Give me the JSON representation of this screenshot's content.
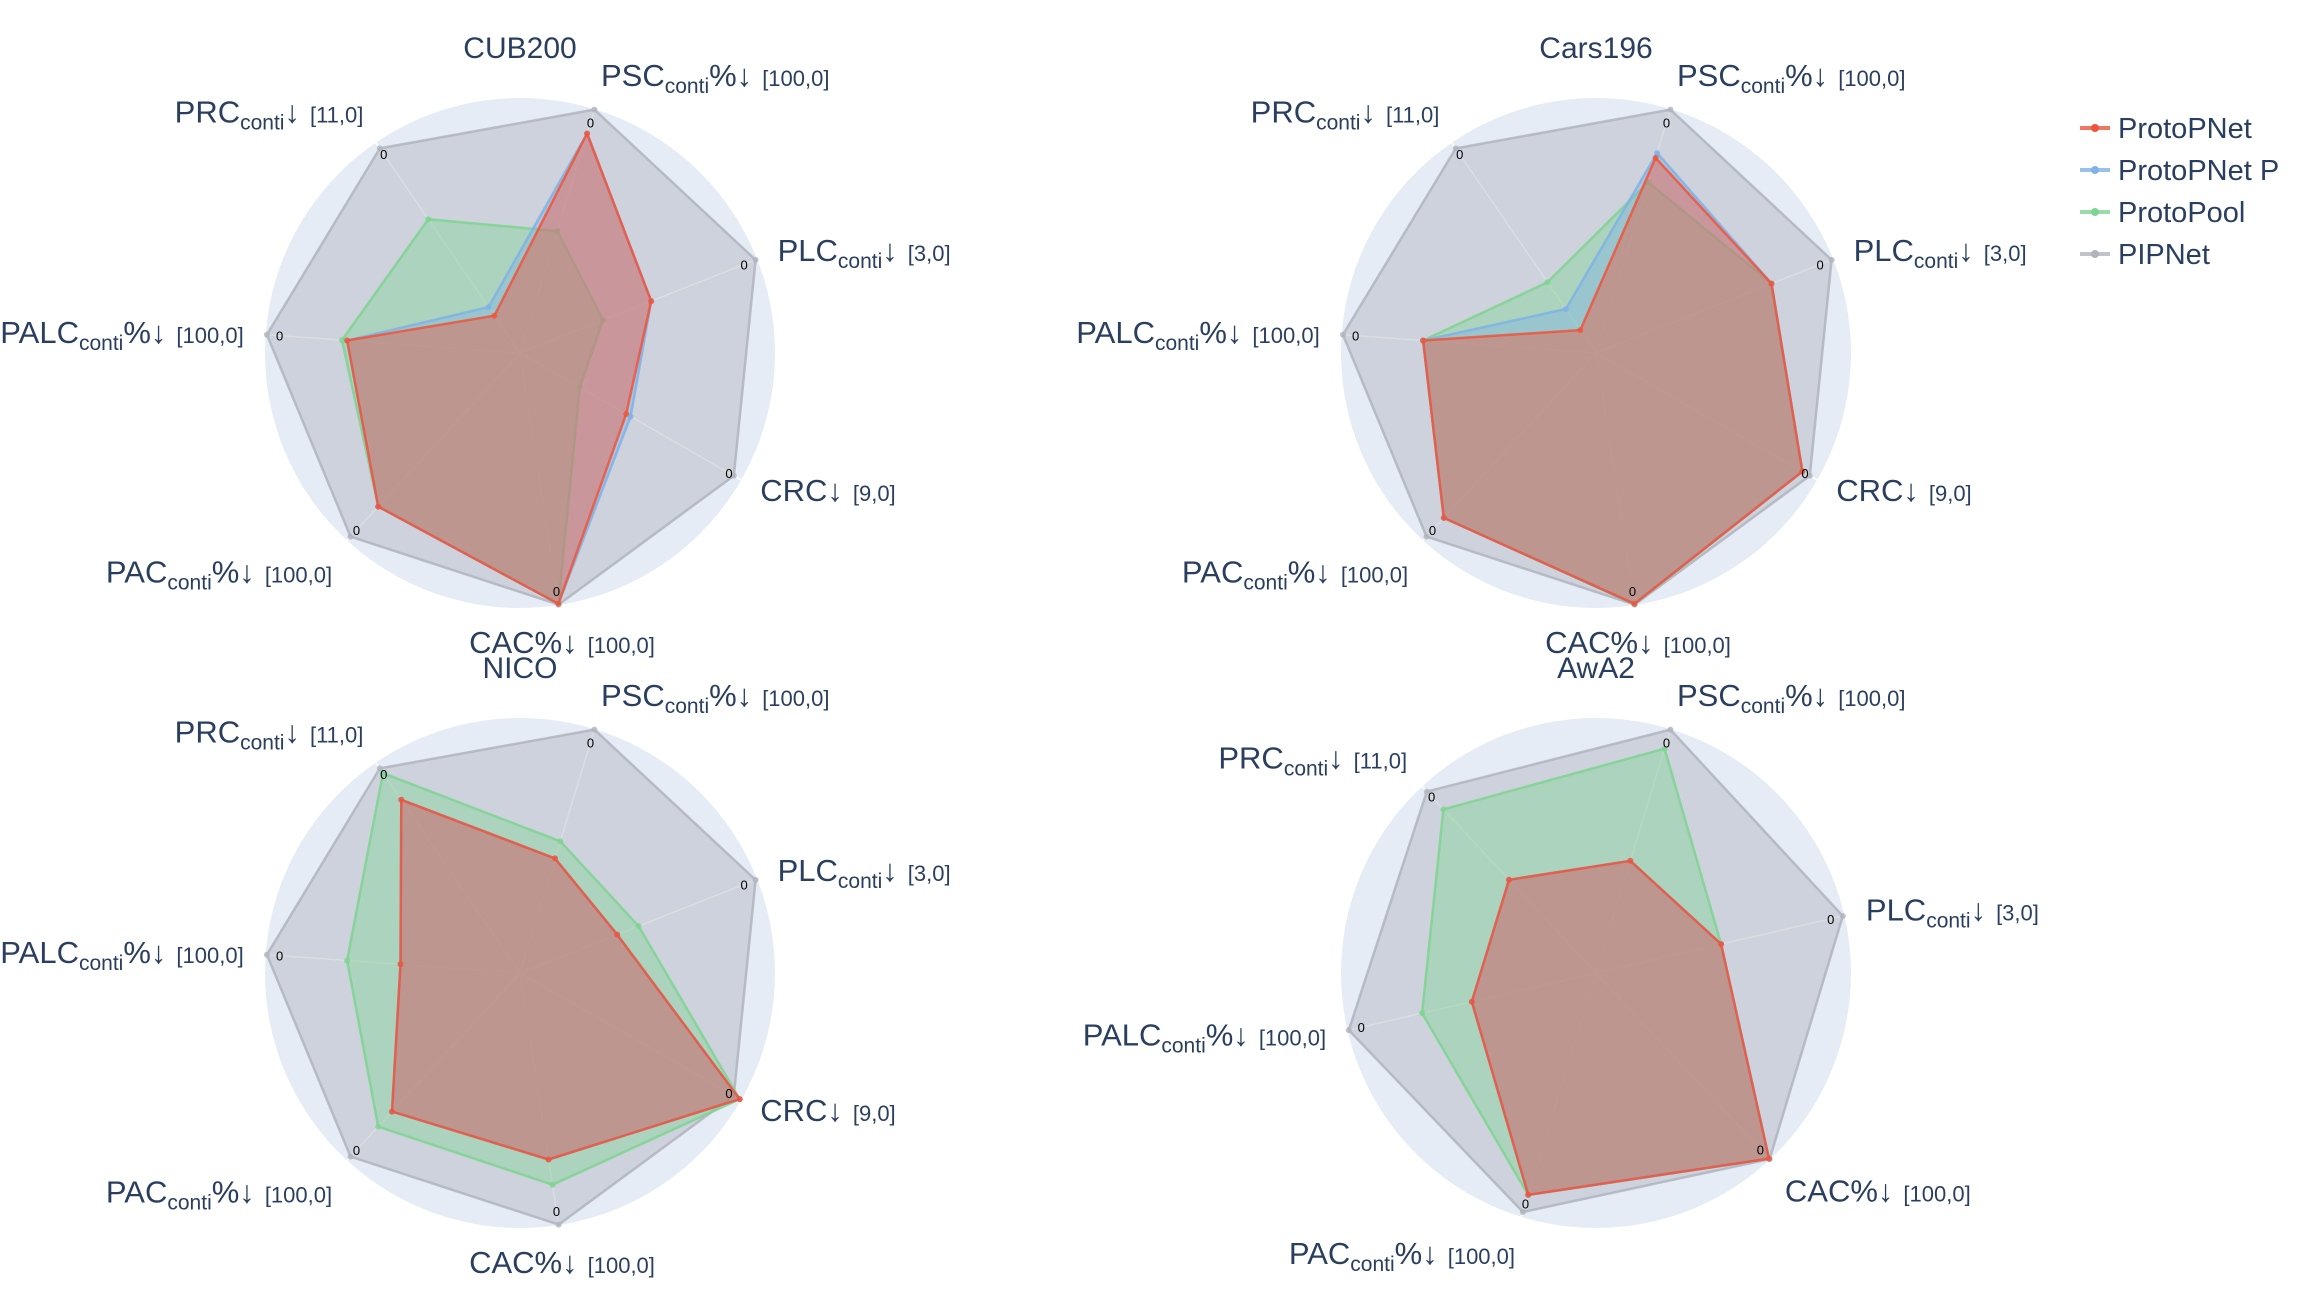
{
  "chart_data": {
    "type": "radar",
    "legend": {
      "placement": "top-right",
      "series": [
        {
          "name": "ProtoPNet",
          "color": "#ef553b"
        },
        {
          "name": "ProtoPNet P",
          "color": "#7fb2e5"
        },
        {
          "name": "ProtoPool",
          "color": "#7ed491"
        },
        {
          "name": "PIPNet",
          "color": "#b0b4bd"
        }
      ]
    },
    "panels": [
      {
        "title": "CUB200",
        "axes": [
          {
            "main": "PSC",
            "sub": "conti",
            "suffix": "%↓",
            "range": "[100,0]",
            "max": 100
          },
          {
            "main": "PLC",
            "sub": "conti",
            "suffix": "↓",
            "range": "[3,0]",
            "max": 3
          },
          {
            "main": "CRC",
            "sub": "",
            "suffix": "↓",
            "range": "[9,0]",
            "max": 9
          },
          {
            "main": "CAC",
            "sub": "",
            "suffix": "%↓",
            "range": "[100,0]",
            "max": 100
          },
          {
            "main": "PAC",
            "sub": "conti",
            "suffix": "%↓",
            "range": "[100,0]",
            "max": 100
          },
          {
            "main": "PALC",
            "sub": "conti",
            "suffix": "%↓",
            "range": "[100,0]",
            "max": 100
          },
          {
            "main": "PRC",
            "sub": "conti",
            "suffix": "↓",
            "range": "[11,0]",
            "max": 11
          }
        ],
        "tick_label": "0",
        "series": [
          {
            "name": "ProtoPNet",
            "values": [
              10,
              1.34,
              4.68,
              0.5,
              18,
              32,
              9.05
            ]
          },
          {
            "name": "ProtoPNet P",
            "values": [
              10,
              1.34,
              4.5,
              0.5,
              18,
              32,
              8.6
            ]
          },
          {
            "name": "ProtoPool",
            "values": [
              50,
              1.95,
              6.57,
              0.5,
              18,
              30,
              4.0
            ]
          },
          {
            "name": "PIPNet",
            "values": [
              0.2,
              0.02,
              0.3,
              0.2,
              2,
              0.5,
              0.3
            ]
          }
        ]
      },
      {
        "title": "Cars196",
        "axes": [
          {
            "main": "PSC",
            "sub": "conti",
            "suffix": "%↓",
            "range": "[100,0]",
            "max": 100
          },
          {
            "main": "PLC",
            "sub": "conti",
            "suffix": "↓",
            "range": "[3,0]",
            "max": 3
          },
          {
            "main": "CRC",
            "sub": "",
            "suffix": "↓",
            "range": "[9,0]",
            "max": 9
          },
          {
            "main": "CAC",
            "sub": "",
            "suffix": "%↓",
            "range": "[100,0]",
            "max": 100
          },
          {
            "main": "PAC",
            "sub": "conti",
            "suffix": "%↓",
            "range": "[100,0]",
            "max": 100
          },
          {
            "main": "PALC",
            "sub": "conti",
            "suffix": "%↓",
            "range": "[100,0]",
            "max": 100
          },
          {
            "main": "PRC",
            "sub": "conti",
            "suffix": "↓",
            "range": "[11,0]",
            "max": 11
          }
        ],
        "tick_label": "0",
        "series": [
          {
            "name": "ProtoPNet",
            "values": [
              20,
              0.78,
              0.6,
              0.5,
              12,
              32,
              9.8
            ]
          },
          {
            "name": "ProtoPNet P",
            "values": [
              18,
              0.78,
              0.6,
              0.5,
              12,
              32,
              8.7
            ]
          },
          {
            "name": "ProtoPool",
            "values": [
              30,
              0.78,
              0.6,
              0.3,
              12,
              32,
              7.3
            ]
          },
          {
            "name": "PIPNet",
            "values": [
              0.2,
              0.02,
              0.3,
              0.2,
              2,
              0.5,
              0.3
            ]
          }
        ]
      },
      {
        "title": "NICO",
        "axes": [
          {
            "main": "PSC",
            "sub": "conti",
            "suffix": "%↓",
            "range": "[100,0]",
            "max": 100
          },
          {
            "main": "PLC",
            "sub": "conti",
            "suffix": "↓",
            "range": "[3,0]",
            "max": 3
          },
          {
            "main": "CRC",
            "sub": "",
            "suffix": "↓",
            "range": "[9,0]",
            "max": 9
          },
          {
            "main": "CAC",
            "sub": "",
            "suffix": "%↓",
            "range": "[100,0]",
            "max": 100
          },
          {
            "main": "PAC",
            "sub": "conti",
            "suffix": "%↓",
            "range": "[100,0]",
            "max": 100
          },
          {
            "main": "PALC",
            "sub": "conti",
            "suffix": "%↓",
            "range": "[100,0]",
            "max": 100
          },
          {
            "main": "PRC",
            "sub": "conti",
            "suffix": "↓",
            "range": "[11,0]",
            "max": 11
          }
        ],
        "tick_label": "0",
        "series": [
          {
            "name": "ProtoPNet",
            "values": [
              53,
              1.77,
              0.06,
              26,
              26,
              53,
              1.94
            ]
          },
          {
            "name": "ProtoPNet P",
            "values": [
              53,
              1.77,
              0.06,
              26,
              26,
              53,
              1.94
            ]
          },
          {
            "name": "ProtoPool",
            "values": [
              46,
              1.5,
              0.06,
              16,
              18,
              32,
              0.55
            ]
          },
          {
            "name": "PIPNet",
            "values": [
              0.2,
              0.02,
              0.3,
              0.2,
              2,
              0.5,
              0.3
            ]
          }
        ]
      },
      {
        "title": "AwA2",
        "axes": [
          {
            "main": "PSC",
            "sub": "conti",
            "suffix": "%↓",
            "range": "[100,0]",
            "max": 100
          },
          {
            "main": "PLC",
            "sub": "conti",
            "suffix": "↓",
            "range": "[3,0]",
            "max": 3
          },
          {
            "main": "CAC",
            "sub": "",
            "suffix": "%↓",
            "range": "[100,0]",
            "max": 100
          },
          {
            "main": "PAC",
            "sub": "conti",
            "suffix": "%↓",
            "range": "[100,0]",
            "max": 100
          },
          {
            "main": "PALC",
            "sub": "conti",
            "suffix": "%↓",
            "range": "[100,0]",
            "max": 100
          },
          {
            "main": "PRC",
            "sub": "conti",
            "suffix": "↓",
            "range": "[11,0]",
            "max": 11
          }
        ],
        "tick_label": "0",
        "series": [
          {
            "name": "ProtoPNet",
            "values": [
              54,
              1.49,
              0.5,
              9,
              50,
              5.5
            ]
          },
          {
            "name": "ProtoPNet P",
            "values": [
              54,
              1.49,
              0.5,
              9,
              50,
              5.5
            ]
          },
          {
            "name": "ProtoPool",
            "values": [
              8,
              1.49,
              0.5,
              9,
              30,
              1.35
            ]
          },
          {
            "name": "PIPNet",
            "values": [
              0.2,
              0.02,
              0.2,
              2,
              0.5,
              0.3
            ]
          }
        ]
      }
    ]
  }
}
